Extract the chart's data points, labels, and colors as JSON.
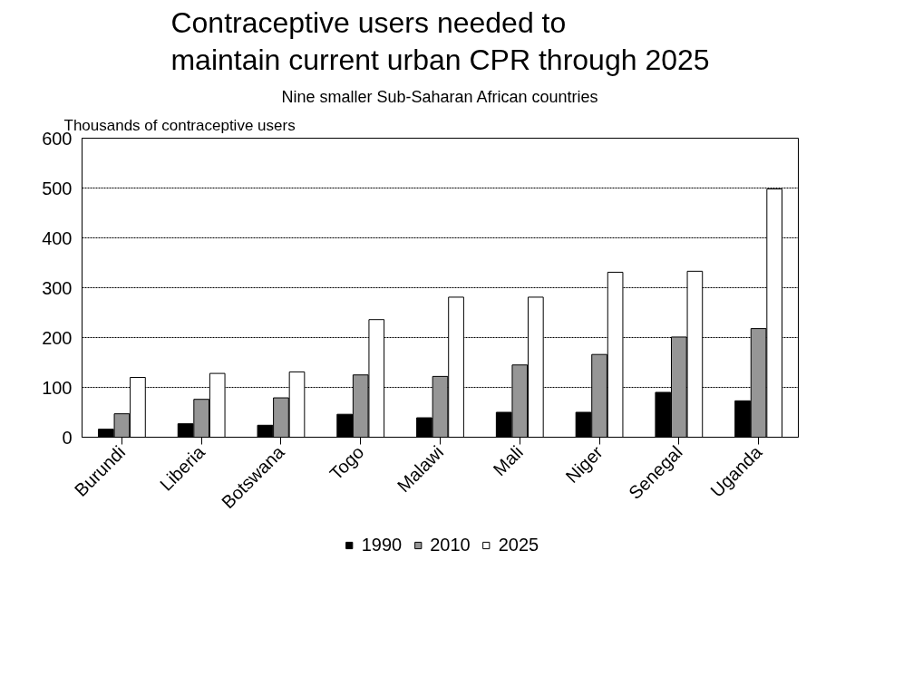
{
  "chart_data": {
    "type": "bar",
    "title": "Contraceptive users needed to\nmaintain current urban CPR through 2025",
    "subtitle": "Nine smaller Sub-Saharan African countries",
    "ylabel": "Thousands of contraceptive users",
    "categories": [
      "Burundi",
      "Liberia",
      "Botswana",
      "Togo",
      "Malawi",
      "Mali",
      "Niger",
      "Senegal",
      "Uganda"
    ],
    "series": [
      {
        "name": "1990",
        "color": "#000000",
        "values": [
          16,
          27,
          24,
          46,
          39,
          50,
          50,
          90,
          73
        ]
      },
      {
        "name": "2010",
        "color": "#969696",
        "values": [
          47,
          76,
          79,
          125,
          122,
          145,
          166,
          201,
          218
        ]
      },
      {
        "name": "2025",
        "color": "#ffffff",
        "values": [
          120,
          128,
          131,
          236,
          281,
          281,
          331,
          333,
          498
        ]
      }
    ],
    "ylim": [
      0,
      600
    ],
    "yticks": [
      0,
      100,
      200,
      300,
      400,
      500,
      600
    ],
    "grid": "y",
    "legend": "bottom"
  }
}
